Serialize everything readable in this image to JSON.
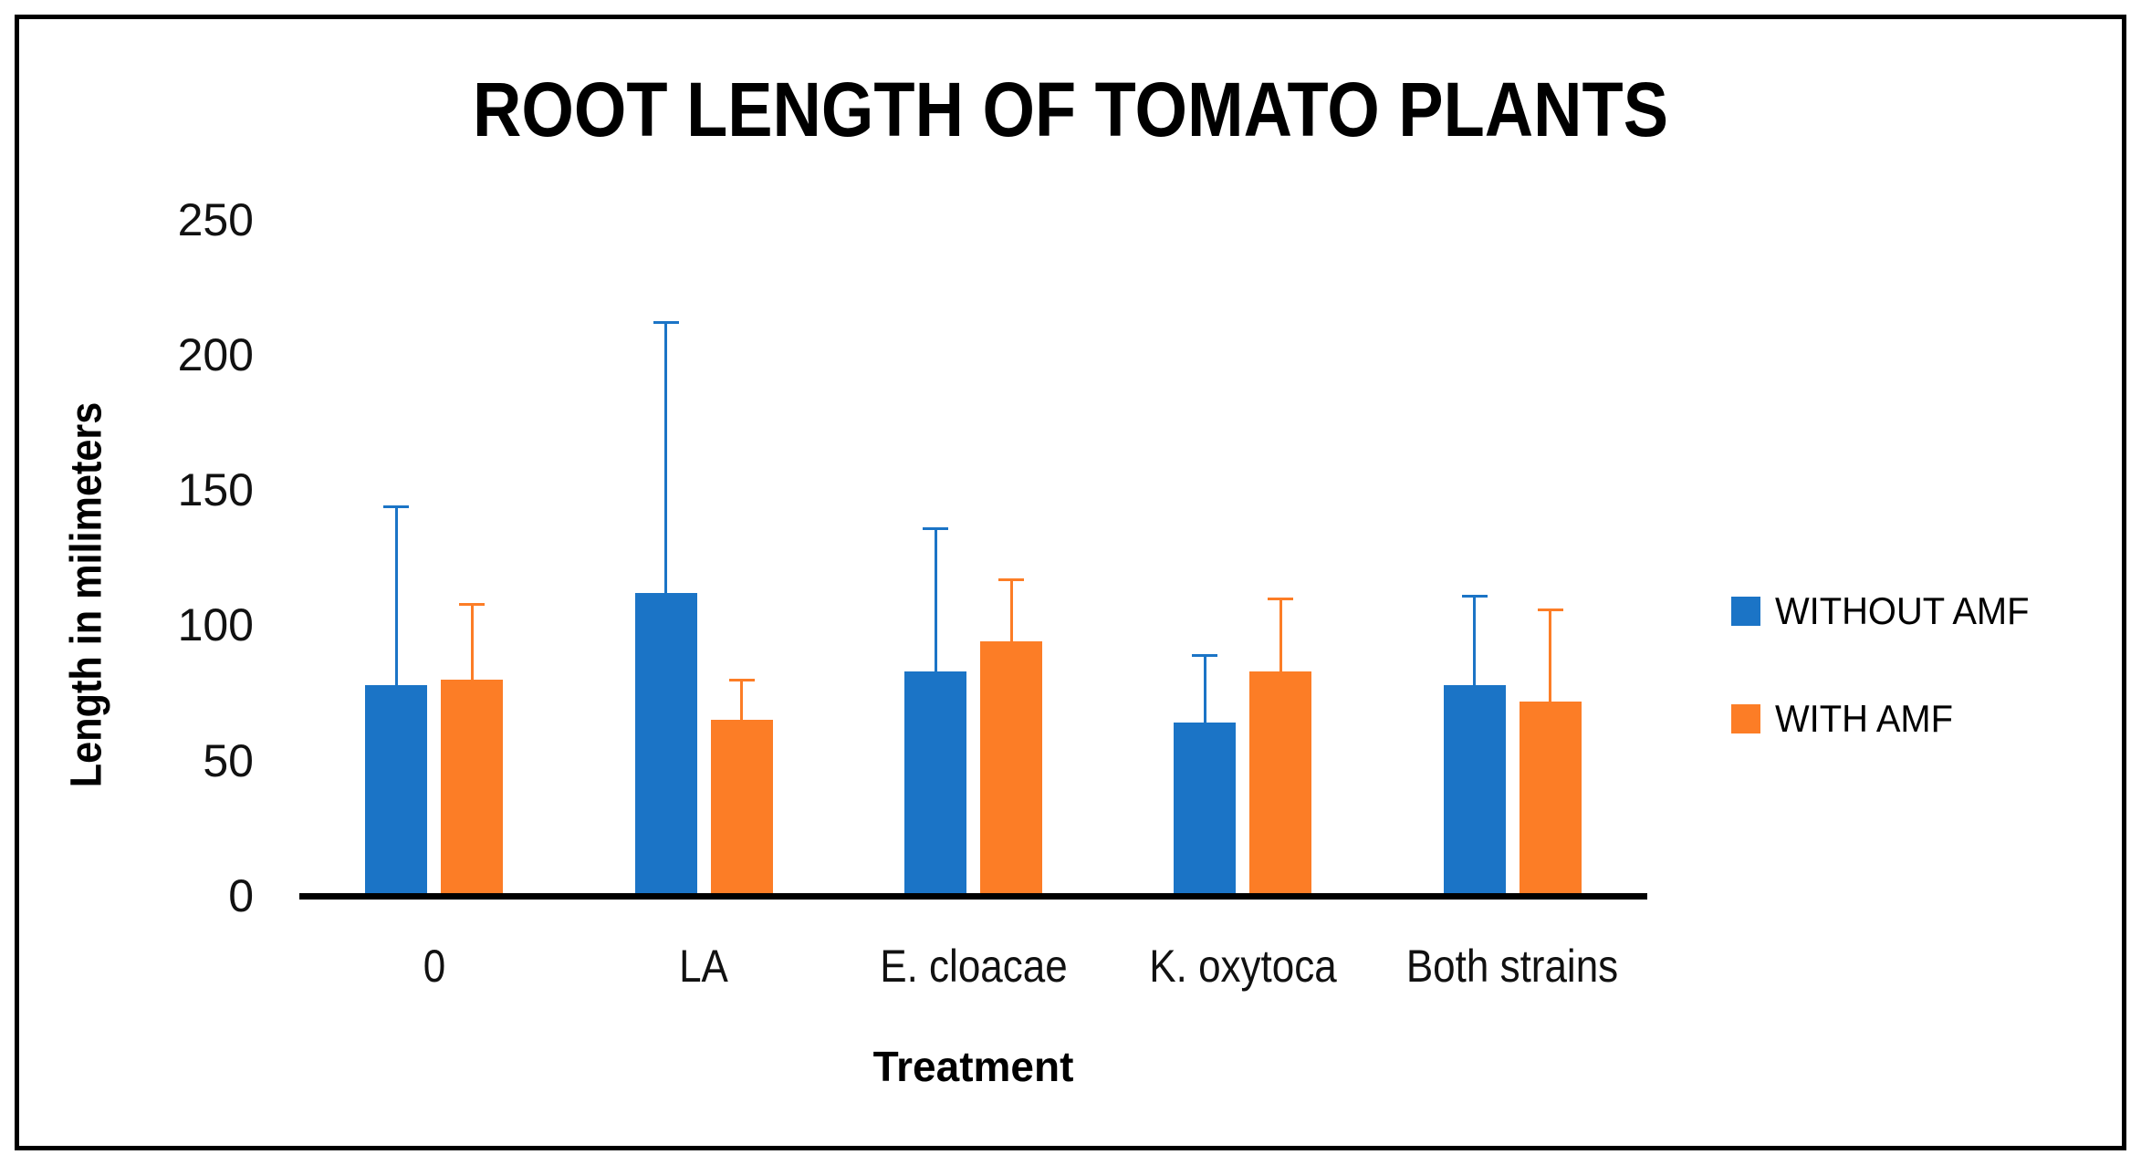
{
  "chart_data": {
    "type": "bar",
    "title": "ROOT LENGTH OF TOMATO PLANTS",
    "xlabel": "Treatment",
    "ylabel": "Length in milimeters",
    "categories": [
      "0",
      "LA",
      "E. cloacae",
      "K. oxytoca",
      "Both strains"
    ],
    "series": [
      {
        "name": "WITHOUT AMF",
        "color": "#1B74C6",
        "values": [
          78,
          112,
          83,
          64,
          78
        ],
        "error_plus": [
          66,
          100,
          53,
          25,
          33
        ]
      },
      {
        "name": "WITH AMF",
        "color": "#FC7D26",
        "values": [
          80,
          65,
          94,
          83,
          72
        ],
        "error_plus": [
          28,
          15,
          23,
          27,
          34
        ]
      }
    ],
    "ylim": [
      0,
      250
    ],
    "yticks": [
      0,
      50,
      100,
      150,
      200,
      250
    ],
    "grid": false,
    "error_bars": "plus-only",
    "axis_line_color": "#000000",
    "legend_position": "right"
  }
}
